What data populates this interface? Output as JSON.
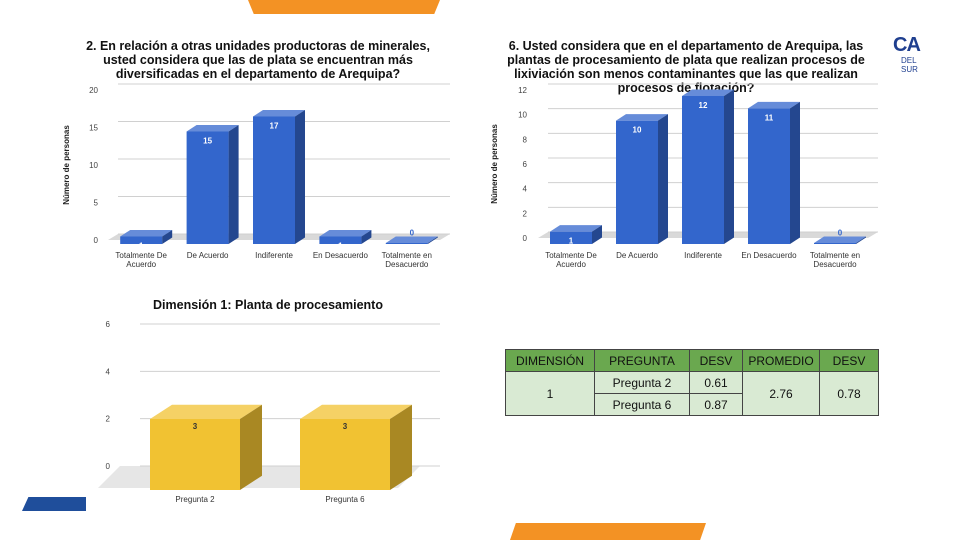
{
  "colors": {
    "blue_bar": "#3366cc",
    "yellow_bar": "#f1c232",
    "orange_accent": "#f39224",
    "navy_accent": "#1f4e9b",
    "table_header": "#6aa84f",
    "table_cell": "#d9ead3"
  },
  "logo": {
    "text_big": "CA",
    "text_small": "DEL SUR"
  },
  "charts": [
    {
      "title": "2. En relación a otras unidades productoras de minerales, usted considera que las de plata se encuentran más diversificadas en el departamento de Arequipa?",
      "chart_data": {
        "type": "bar",
        "categories": [
          "Totalmente De Acuerdo",
          "De Acuerdo",
          "Indiferente",
          "En Desacuerdo",
          "Totalmente en Desacuerdo"
        ],
        "values": [
          1,
          15,
          17,
          1,
          0
        ],
        "ylabel": "Número de personas",
        "ylim": [
          0,
          20
        ],
        "yticks": [
          0,
          5,
          10,
          15,
          20
        ],
        "grid": true
      }
    },
    {
      "title": "6.  Usted considera que en el departamento de Arequipa, las plantas de procesamiento de plata que realizan procesos de lixiviación son menos contaminantes que las que realizan procesos de flotación?",
      "chart_data": {
        "type": "bar",
        "categories": [
          "Totalmente De Acuerdo",
          "De Acuerdo",
          "Indiferente",
          "En Desacuerdo",
          "Totalmente en Desacuerdo"
        ],
        "values": [
          1,
          10,
          12,
          11,
          0
        ],
        "ylabel": "Número de personas",
        "ylim": [
          0,
          12
        ],
        "yticks": [
          0,
          2,
          4,
          6,
          8,
          10,
          12
        ],
        "grid": true
      }
    },
    {
      "title": "Dimensión 1: Planta de procesamiento",
      "chart_data": {
        "type": "bar",
        "categories": [
          "Pregunta 2",
          "Pregunta 6"
        ],
        "values": [
          3,
          3
        ],
        "ylabel": "",
        "ylim": [
          0,
          6
        ],
        "yticks": [
          0,
          2,
          4,
          6
        ],
        "grid": true
      }
    }
  ],
  "table": {
    "headers": [
      "DIMENSIÓN",
      "PREGUNTA",
      "DESV",
      "PROMEDIO",
      "DESV"
    ],
    "dimension": "1",
    "rows": [
      {
        "pregunta": "Pregunta 2",
        "desv": "0.61"
      },
      {
        "pregunta": "Pregunta 6",
        "desv": "0.87"
      }
    ],
    "promedio": "2.76",
    "desv_total": "0.78"
  }
}
